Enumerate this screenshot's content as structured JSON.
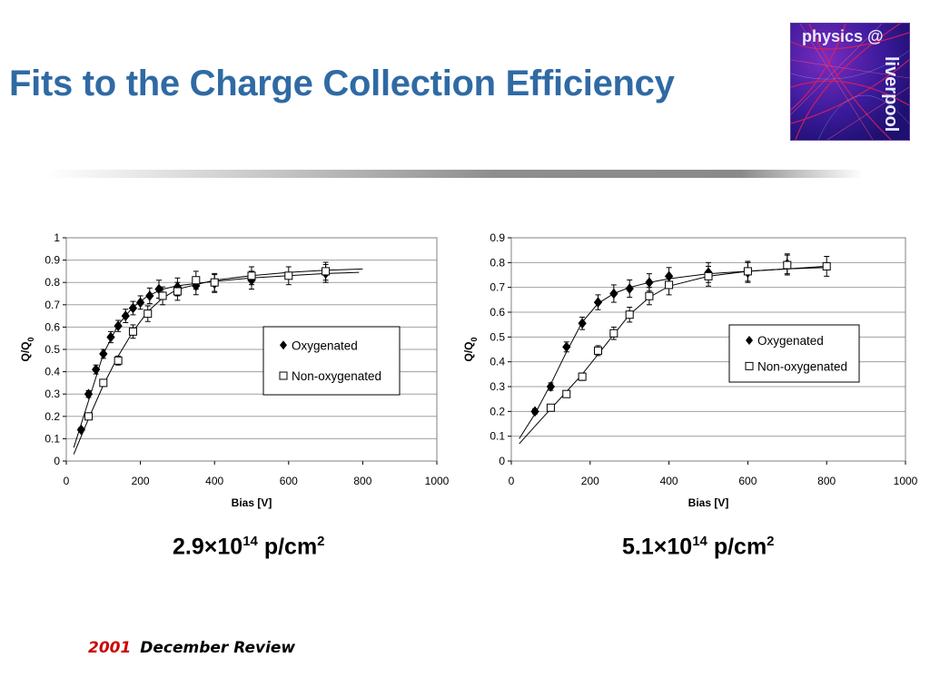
{
  "slide": {
    "title": "Fits to the Charge Collection Efficiency",
    "logo": {
      "text_top": "physics @",
      "text_side": "liverpool"
    },
    "footer": {
      "year": "2001",
      "text": "December Review"
    }
  },
  "captions": [
    {
      "mantissa": "2.9",
      "times": "×",
      "base": "10",
      "exponent": "14",
      "unit": " p/cm",
      "unit_exp": "2"
    },
    {
      "mantissa": "5.1",
      "times": "×",
      "base": "10",
      "exponent": "14",
      "unit": " p/cm",
      "unit_exp": "2"
    }
  ],
  "colors": {
    "title": "#2f6aa4",
    "footer_year": "#cc0000",
    "marker": "#000000",
    "grid": "#a0a0a0"
  },
  "chart_data": [
    {
      "type": "scatter",
      "xlabel": "Bias [V]",
      "ylabel": "Q/Q0",
      "xlim": [
        0,
        1000
      ],
      "ylim": [
        0,
        1
      ],
      "xticks": [
        0,
        200,
        400,
        600,
        800,
        1000
      ],
      "yticks": [
        0,
        0.1,
        0.2,
        0.3,
        0.4,
        0.5,
        0.6,
        0.7,
        0.8,
        0.9,
        1
      ],
      "ytick_labels": [
        "0",
        "0.1",
        "0.2",
        "0.3",
        "0.4",
        "0.5",
        "0.6",
        "0.7",
        "0.8",
        "0.9",
        "1"
      ],
      "grid": "horizontal",
      "legend_position": "right",
      "series": [
        {
          "name": "Oxygenated",
          "marker": "diamond-filled",
          "x": [
            40,
            60,
            80,
            100,
            120,
            140,
            160,
            180,
            200,
            225,
            250,
            300,
            350,
            400,
            500,
            700
          ],
          "y": [
            0.14,
            0.3,
            0.41,
            0.48,
            0.555,
            0.605,
            0.65,
            0.685,
            0.71,
            0.74,
            0.77,
            0.78,
            0.785,
            0.795,
            0.81,
            0.84
          ],
          "err": [
            0.01,
            0.015,
            0.02,
            0.02,
            0.025,
            0.025,
            0.03,
            0.03,
            0.03,
            0.035,
            0.04,
            0.04,
            0.04,
            0.04,
            0.04,
            0.04
          ],
          "fit_x": [
            20,
            60,
            100,
            140,
            180,
            220,
            260,
            300,
            350,
            400,
            500,
            600,
            700,
            790
          ],
          "fit_y": [
            0.06,
            0.27,
            0.48,
            0.61,
            0.69,
            0.74,
            0.77,
            0.785,
            0.795,
            0.805,
            0.82,
            0.83,
            0.84,
            0.845
          ]
        },
        {
          "name": "Non-oxygenated",
          "marker": "square-open",
          "x": [
            60,
            100,
            140,
            180,
            220,
            260,
            300,
            350,
            400,
            500,
            600,
            700
          ],
          "y": [
            0.2,
            0.35,
            0.45,
            0.58,
            0.66,
            0.74,
            0.76,
            0.81,
            0.8,
            0.83,
            0.83,
            0.85
          ],
          "err": [
            0.01,
            0.015,
            0.02,
            0.03,
            0.035,
            0.04,
            0.04,
            0.04,
            0.04,
            0.04,
            0.04,
            0.04
          ],
          "fit_x": [
            20,
            60,
            100,
            140,
            180,
            220,
            260,
            300,
            350,
            400,
            500,
            600,
            700,
            800
          ],
          "fit_y": [
            0.03,
            0.19,
            0.34,
            0.47,
            0.58,
            0.67,
            0.73,
            0.77,
            0.79,
            0.81,
            0.83,
            0.845,
            0.855,
            0.86
          ]
        }
      ]
    },
    {
      "type": "scatter",
      "xlabel": "Bias [V]",
      "ylabel": "Q/Q0",
      "xlim": [
        0,
        1000
      ],
      "ylim": [
        0,
        0.9
      ],
      "xticks": [
        0,
        200,
        400,
        600,
        800,
        1000
      ],
      "yticks": [
        0,
        0.1,
        0.2,
        0.3,
        0.4,
        0.5,
        0.6,
        0.7,
        0.8,
        0.9
      ],
      "ytick_labels": [
        "0",
        "0.1",
        "0.2",
        "0.3",
        "0.4",
        "0.5",
        "0.6",
        "0.7",
        "0.8",
        "0.9"
      ],
      "grid": "horizontal",
      "legend_position": "right",
      "series": [
        {
          "name": "Oxygenated",
          "marker": "diamond-filled",
          "x": [
            60,
            100,
            140,
            180,
            220,
            260,
            300,
            350,
            400,
            500,
            600,
            700
          ],
          "y": [
            0.2,
            0.3,
            0.46,
            0.555,
            0.64,
            0.675,
            0.695,
            0.72,
            0.745,
            0.76,
            0.76,
            0.795
          ],
          "err": [
            0.01,
            0.015,
            0.02,
            0.025,
            0.03,
            0.035,
            0.035,
            0.035,
            0.035,
            0.04,
            0.04,
            0.04
          ],
          "fit_x": [
            20,
            60,
            100,
            140,
            180,
            220,
            260,
            300,
            350,
            400,
            500,
            600,
            700,
            800
          ],
          "fit_y": [
            0.09,
            0.19,
            0.31,
            0.44,
            0.56,
            0.635,
            0.675,
            0.7,
            0.72,
            0.735,
            0.755,
            0.765,
            0.775,
            0.78
          ]
        },
        {
          "name": "Non-oxygenated",
          "marker": "square-open",
          "x": [
            100,
            140,
            180,
            220,
            260,
            300,
            350,
            400,
            500,
            600,
            700,
            800
          ],
          "y": [
            0.215,
            0.27,
            0.34,
            0.445,
            0.515,
            0.59,
            0.665,
            0.71,
            0.745,
            0.765,
            0.79,
            0.785
          ],
          "err": [
            0.01,
            0.01,
            0.015,
            0.02,
            0.025,
            0.03,
            0.035,
            0.04,
            0.04,
            0.04,
            0.04,
            0.04
          ],
          "fit_x": [
            20,
            60,
            100,
            140,
            180,
            220,
            260,
            300,
            350,
            400,
            500,
            600,
            700,
            800
          ],
          "fit_y": [
            0.07,
            0.14,
            0.21,
            0.28,
            0.35,
            0.43,
            0.51,
            0.59,
            0.66,
            0.705,
            0.745,
            0.765,
            0.775,
            0.785
          ]
        }
      ]
    }
  ]
}
